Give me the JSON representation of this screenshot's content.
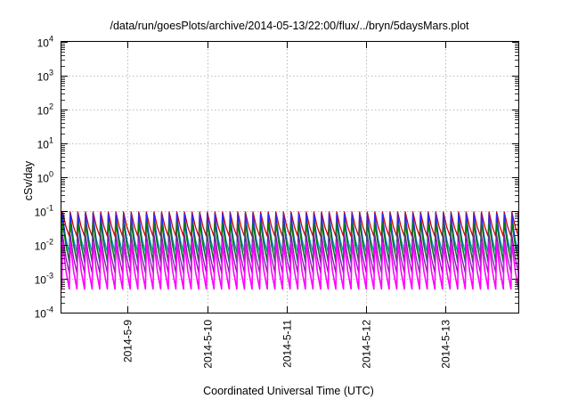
{
  "chart_data": {
    "type": "line",
    "title": "/data/run/goesPlots/archive/2014-05-13/22:00/flux/../bryn/5daysMars.plot",
    "xlabel": "Coordinated Universal Time (UTC)",
    "ylabel": "cSv/day",
    "y_scale": "log",
    "ylim": [
      0.0001,
      10000
    ],
    "y_ticks": [
      {
        "value": 0.0001,
        "base": "10",
        "exp": "-4"
      },
      {
        "value": 0.001,
        "base": "10",
        "exp": "-3"
      },
      {
        "value": 0.01,
        "base": "10",
        "exp": "-2"
      },
      {
        "value": 0.1,
        "base": "10",
        "exp": "-1"
      },
      {
        "value": 1,
        "base": "10",
        "exp": "0"
      },
      {
        "value": 10,
        "base": "10",
        "exp": "1"
      },
      {
        "value": 100,
        "base": "10",
        "exp": "2"
      },
      {
        "value": 1000,
        "base": "10",
        "exp": "3"
      },
      {
        "value": 10000,
        "base": "10",
        "exp": "4"
      }
    ],
    "xlim": [
      "2014-05-08 04:00",
      "2014-05-13 22:00"
    ],
    "x_ticks": [
      {
        "value": "2014-05-09 00:00",
        "label": "2014-5-9"
      },
      {
        "value": "2014-05-10 00:00",
        "label": "2014-5-10"
      },
      {
        "value": "2014-05-11 00:00",
        "label": "2014-5-11"
      },
      {
        "value": "2014-05-12 00:00",
        "label": "2014-5-12"
      },
      {
        "value": "2014-05-13 00:00",
        "label": "2014-5-13"
      }
    ],
    "grid": true,
    "legend": "none",
    "oscillation_cycles": 60,
    "series": [
      {
        "color": "#d00000",
        "peak": 0.095,
        "trough": 0.018
      },
      {
        "color": "#00a0a0",
        "peak": 0.06,
        "trough": 0.006
      },
      {
        "color": "#2a2aff",
        "peak": 0.085,
        "trough": 0.003
      },
      {
        "color": "#008000",
        "peak": 0.045,
        "trough": 0.0035
      },
      {
        "color": "#7b1fa2",
        "peak": 0.02,
        "trough": 0.0015
      },
      {
        "color": "#ff00ff",
        "peak": 0.012,
        "trough": 0.0005
      }
    ]
  }
}
